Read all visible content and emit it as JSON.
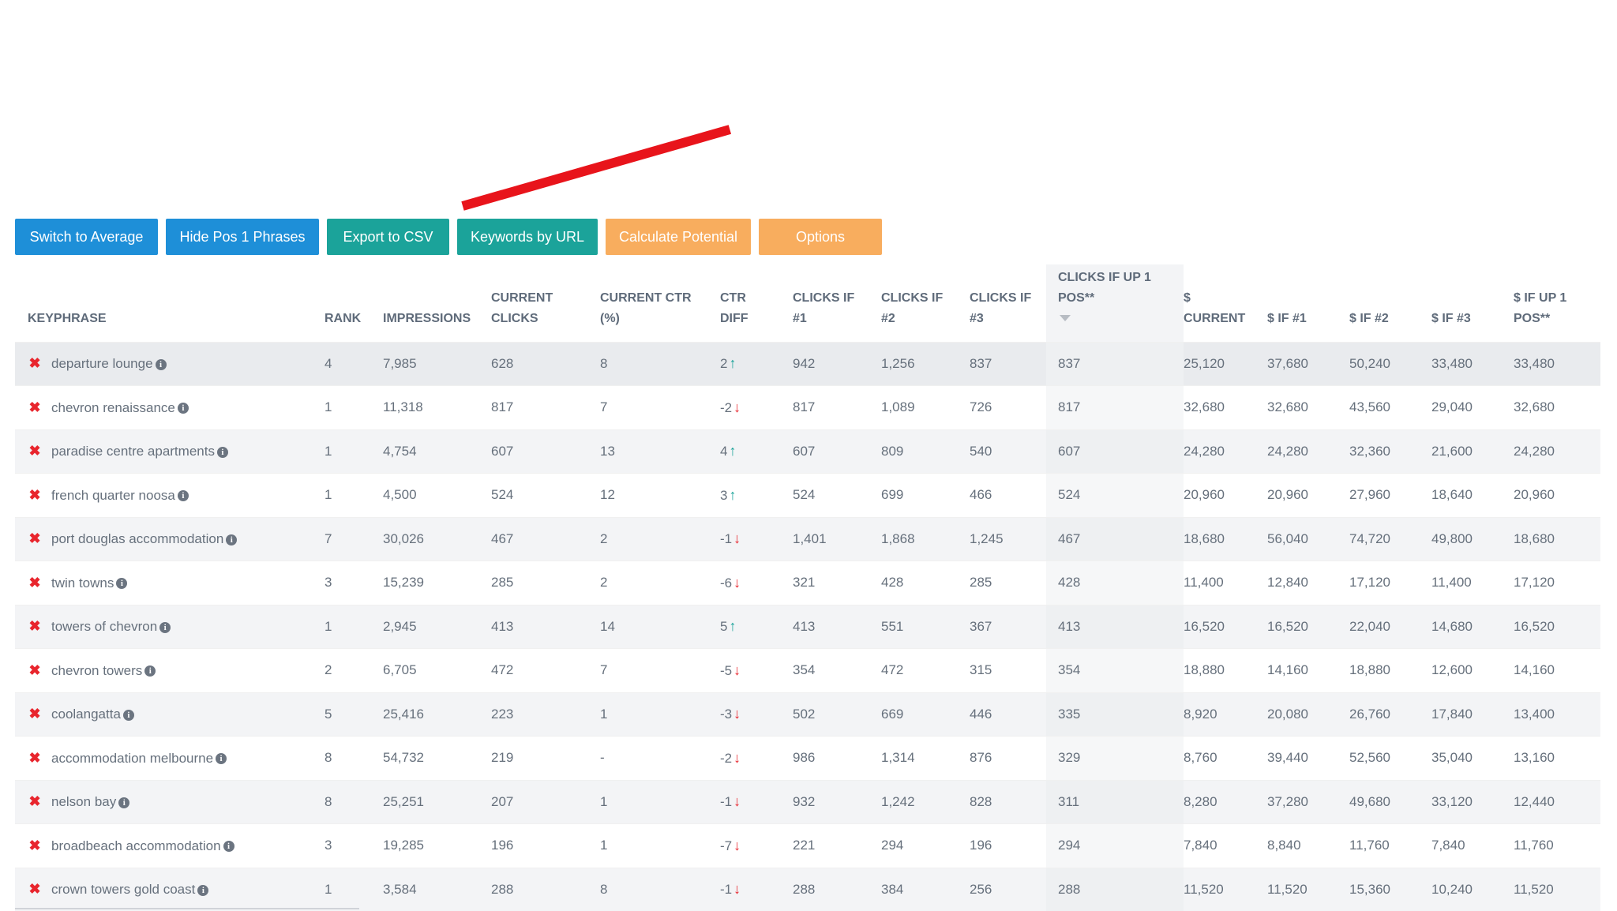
{
  "toolbar": {
    "switch_label": "Switch to Average",
    "hide_label": "Hide Pos 1 Phrases",
    "export_label": "Export to CSV",
    "keywords_label": "Keywords by URL",
    "calculate_label": "Calculate Potential",
    "options_label": "Options"
  },
  "columns": {
    "keyphrase": "KEYPHRASE",
    "rank": "RANK",
    "impressions": "IMPRESSIONS",
    "current_clicks": "CURRENT CLICKS",
    "current_ctr": "CURRENT CTR (%)",
    "ctr_diff": "CTR DIFF",
    "clicks_if_1": "CLICKS IF #1",
    "clicks_if_2": "CLICKS IF #2",
    "clicks_if_3": "CLICKS IF #3",
    "clicks_if_up": "CLICKS IF UP 1 POS**",
    "dollar_current": "$ CURRENT",
    "dollar_if_1": "$ IF #1",
    "dollar_if_2": "$ IF #2",
    "dollar_if_3": "$ IF #3",
    "dollar_if_up": "$ IF UP 1 POS**"
  },
  "rows": [
    {
      "keyphrase": "departure lounge",
      "rank": "4",
      "impressions": "7,985",
      "clicks": "628",
      "ctr": "8",
      "diff": "2",
      "dir": "up",
      "c1": "942",
      "c2": "1,256",
      "c3": "837",
      "cup": "837",
      "d_cur": "25,120",
      "d1": "37,680",
      "d2": "50,240",
      "d3": "33,480",
      "dup": "33,480"
    },
    {
      "keyphrase": "chevron renaissance",
      "rank": "1",
      "impressions": "11,318",
      "clicks": "817",
      "ctr": "7",
      "diff": "-2",
      "dir": "down",
      "c1": "817",
      "c2": "1,089",
      "c3": "726",
      "cup": "817",
      "d_cur": "32,680",
      "d1": "32,680",
      "d2": "43,560",
      "d3": "29,040",
      "dup": "32,680"
    },
    {
      "keyphrase": "paradise centre apartments",
      "rank": "1",
      "impressions": "4,754",
      "clicks": "607",
      "ctr": "13",
      "diff": "4",
      "dir": "up",
      "c1": "607",
      "c2": "809",
      "c3": "540",
      "cup": "607",
      "d_cur": "24,280",
      "d1": "24,280",
      "d2": "32,360",
      "d3": "21,600",
      "dup": "24,280"
    },
    {
      "keyphrase": "french quarter noosa",
      "rank": "1",
      "impressions": "4,500",
      "clicks": "524",
      "ctr": "12",
      "diff": "3",
      "dir": "up",
      "c1": "524",
      "c2": "699",
      "c3": "466",
      "cup": "524",
      "d_cur": "20,960",
      "d1": "20,960",
      "d2": "27,960",
      "d3": "18,640",
      "dup": "20,960"
    },
    {
      "keyphrase": "port douglas accommodation",
      "rank": "7",
      "impressions": "30,026",
      "clicks": "467",
      "ctr": "2",
      "diff": "-1",
      "dir": "down",
      "c1": "1,401",
      "c2": "1,868",
      "c3": "1,245",
      "cup": "467",
      "d_cur": "18,680",
      "d1": "56,040",
      "d2": "74,720",
      "d3": "49,800",
      "dup": "18,680"
    },
    {
      "keyphrase": "twin towns",
      "rank": "3",
      "impressions": "15,239",
      "clicks": "285",
      "ctr": "2",
      "diff": "-6",
      "dir": "down",
      "c1": "321",
      "c2": "428",
      "c3": "285",
      "cup": "428",
      "d_cur": "11,400",
      "d1": "12,840",
      "d2": "17,120",
      "d3": "11,400",
      "dup": "17,120"
    },
    {
      "keyphrase": "towers of chevron",
      "rank": "1",
      "impressions": "2,945",
      "clicks": "413",
      "ctr": "14",
      "diff": "5",
      "dir": "up",
      "c1": "413",
      "c2": "551",
      "c3": "367",
      "cup": "413",
      "d_cur": "16,520",
      "d1": "16,520",
      "d2": "22,040",
      "d3": "14,680",
      "dup": "16,520"
    },
    {
      "keyphrase": "chevron towers",
      "rank": "2",
      "impressions": "6,705",
      "clicks": "472",
      "ctr": "7",
      "diff": "-5",
      "dir": "down",
      "c1": "354",
      "c2": "472",
      "c3": "315",
      "cup": "354",
      "d_cur": "18,880",
      "d1": "14,160",
      "d2": "18,880",
      "d3": "12,600",
      "dup": "14,160"
    },
    {
      "keyphrase": "coolangatta",
      "rank": "5",
      "impressions": "25,416",
      "clicks": "223",
      "ctr": "1",
      "diff": "-3",
      "dir": "down",
      "c1": "502",
      "c2": "669",
      "c3": "446",
      "cup": "335",
      "d_cur": "8,920",
      "d1": "20,080",
      "d2": "26,760",
      "d3": "17,840",
      "dup": "13,400"
    },
    {
      "keyphrase": "accommodation melbourne",
      "rank": "8",
      "impressions": "54,732",
      "clicks": "219",
      "ctr": "-",
      "diff": "-2",
      "dir": "down",
      "c1": "986",
      "c2": "1,314",
      "c3": "876",
      "cup": "329",
      "d_cur": "8,760",
      "d1": "39,440",
      "d2": "52,560",
      "d3": "35,040",
      "dup": "13,160"
    },
    {
      "keyphrase": "nelson bay",
      "rank": "8",
      "impressions": "25,251",
      "clicks": "207",
      "ctr": "1",
      "diff": "-1",
      "dir": "down",
      "c1": "932",
      "c2": "1,242",
      "c3": "828",
      "cup": "311",
      "d_cur": "8,280",
      "d1": "37,280",
      "d2": "49,680",
      "d3": "33,120",
      "dup": "12,440"
    },
    {
      "keyphrase": "broadbeach accommodation",
      "rank": "3",
      "impressions": "19,285",
      "clicks": "196",
      "ctr": "1",
      "diff": "-7",
      "dir": "down",
      "c1": "221",
      "c2": "294",
      "c3": "196",
      "cup": "294",
      "d_cur": "7,840",
      "d1": "8,840",
      "d2": "11,760",
      "d3": "7,840",
      "dup": "11,760"
    },
    {
      "keyphrase": "crown towers gold coast",
      "rank": "1",
      "impressions": "3,584",
      "clicks": "288",
      "ctr": "8",
      "diff": "-1",
      "dir": "down",
      "c1": "288",
      "c2": "384",
      "c3": "256",
      "cup": "288",
      "d_cur": "11,520",
      "d1": "11,520",
      "d2": "15,360",
      "d3": "10,240",
      "dup": "11,520"
    }
  ],
  "icons": {
    "remove": "close-icon",
    "info": "info-icon",
    "up": "arrow-up-icon",
    "down": "arrow-down-icon",
    "sort": "sort-down-icon"
  },
  "colors": {
    "blue": "#1e8fd8",
    "teal": "#1ba39a",
    "orange": "#f8ad5e",
    "red": "#e8252d"
  }
}
